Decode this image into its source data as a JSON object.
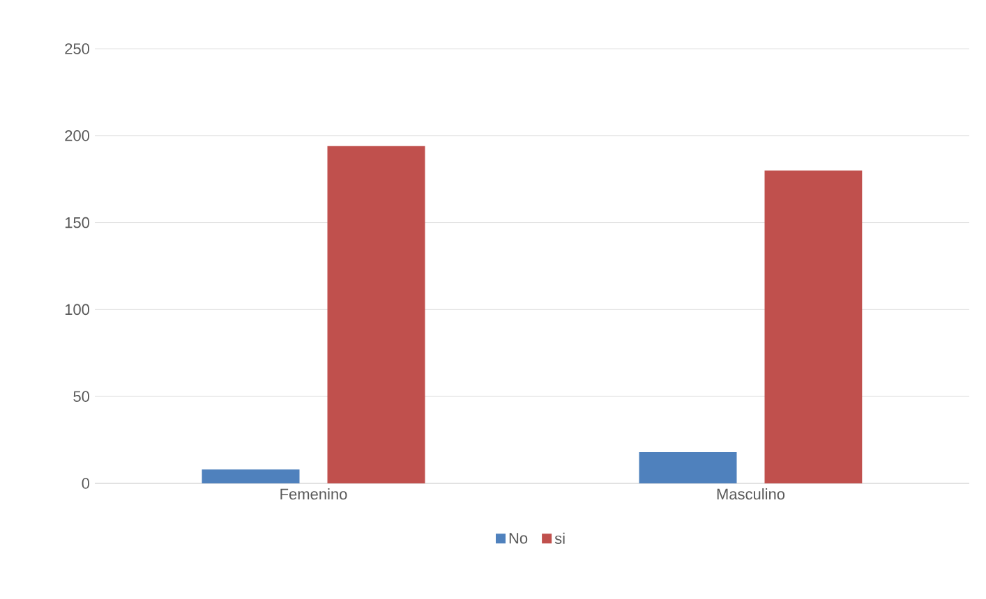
{
  "chart_data": {
    "type": "bar",
    "categories": [
      "Femenino",
      "Masculino"
    ],
    "series": [
      {
        "name": "No",
        "color": "#4f81bd",
        "values": [
          8,
          18
        ]
      },
      {
        "name": "si",
        "color": "#c0504d",
        "values": [
          194,
          180
        ]
      }
    ],
    "ylim": [
      0,
      250
    ],
    "yticks": [
      0,
      50,
      100,
      150,
      200,
      250
    ],
    "grid": "y",
    "legend": "bottom"
  }
}
